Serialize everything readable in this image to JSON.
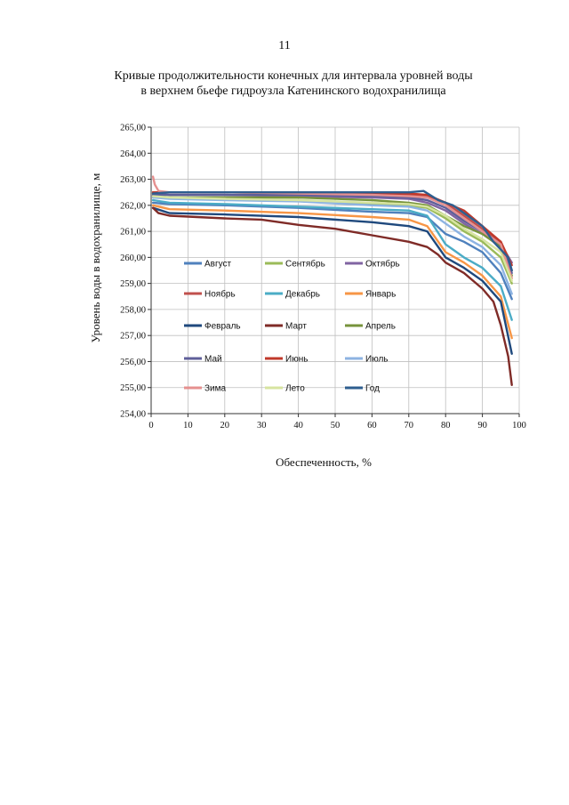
{
  "page_number": "11",
  "title_line1": "Кривые продолжительности конечных для интервала уровней воды",
  "title_line2": "в верхнем бьефе гидроузла Катенинского водохранилища",
  "chart_data": {
    "type": "line",
    "xlabel": "Обеспеченность, %",
    "ylabel": "Уровень воды в водохранилище, м",
    "xlim": [
      0,
      100
    ],
    "ylim": [
      254,
      265
    ],
    "x_ticks": [
      "0",
      "10",
      "20",
      "30",
      "40",
      "50",
      "60",
      "70",
      "80",
      "90",
      "100"
    ],
    "y_ticks": [
      "254,00",
      "255,00",
      "256,00",
      "257,00",
      "258,00",
      "259,00",
      "260,00",
      "261,00",
      "262,00",
      "263,00",
      "264,00",
      "265,00"
    ],
    "grid": true,
    "legend_position": "inside-bottom-left",
    "series": [
      {
        "name": "Август",
        "color": "#4f81bd",
        "x": [
          0.5,
          5,
          20,
          40,
          60,
          70,
          75,
          80,
          85,
          90,
          95,
          98
        ],
        "y": [
          262.1,
          262.05,
          262.0,
          261.9,
          261.75,
          261.7,
          261.55,
          260.9,
          260.6,
          260.2,
          259.4,
          258.4
        ]
      },
      {
        "name": "Сентябрь",
        "color": "#9bbb59",
        "x": [
          0.5,
          5,
          20,
          40,
          60,
          70,
          75,
          80,
          85,
          90,
          95,
          98
        ],
        "y": [
          262.4,
          262.3,
          262.25,
          262.2,
          262.05,
          262.0,
          261.9,
          261.5,
          261.0,
          260.6,
          260.0,
          259.0
        ]
      },
      {
        "name": "Октябрь",
        "color": "#8064a2",
        "x": [
          0.5,
          5,
          20,
          40,
          60,
          70,
          75,
          80,
          85,
          90,
          95,
          98
        ],
        "y": [
          262.45,
          262.4,
          262.4,
          262.35,
          262.3,
          262.25,
          262.1,
          261.8,
          261.3,
          260.9,
          260.5,
          259.8
        ]
      },
      {
        "name": "Ноябрь",
        "color": "#c0504d",
        "x": [
          0.5,
          5,
          20,
          40,
          60,
          70,
          75,
          80,
          85,
          90,
          95,
          98
        ],
        "y": [
          262.5,
          262.5,
          262.5,
          262.45,
          262.4,
          262.4,
          262.35,
          262.1,
          261.6,
          261.1,
          260.6,
          259.5
        ]
      },
      {
        "name": "Декабрь",
        "color": "#4bacc6",
        "x": [
          0.5,
          5,
          20,
          40,
          60,
          70,
          75,
          80,
          85,
          90,
          95,
          98
        ],
        "y": [
          262.2,
          262.1,
          262.05,
          261.95,
          261.85,
          261.8,
          261.6,
          260.5,
          260.0,
          259.6,
          258.9,
          257.6
        ]
      },
      {
        "name": "Январь",
        "color": "#f79646",
        "x": [
          0.5,
          5,
          20,
          40,
          60,
          70,
          75,
          80,
          85,
          90,
          95,
          98
        ],
        "y": [
          262.0,
          261.85,
          261.8,
          261.7,
          261.55,
          261.45,
          261.2,
          260.2,
          259.8,
          259.3,
          258.5,
          256.9
        ]
      },
      {
        "name": "Февраль",
        "color": "#1f497d",
        "x": [
          0.5,
          5,
          20,
          40,
          60,
          70,
          75,
          80,
          85,
          90,
          95,
          98
        ],
        "y": [
          261.9,
          261.7,
          261.65,
          261.55,
          261.35,
          261.2,
          261.0,
          260.0,
          259.6,
          259.1,
          258.3,
          256.3
        ]
      },
      {
        "name": "Март",
        "color": "#7f2b27",
        "x": [
          0.5,
          2,
          5,
          20,
          30,
          40,
          50,
          60,
          70,
          75,
          78,
          80,
          85,
          90,
          93,
          95,
          97,
          98
        ],
        "y": [
          261.9,
          261.7,
          261.6,
          261.5,
          261.45,
          261.25,
          261.1,
          260.85,
          260.6,
          260.4,
          260.1,
          259.8,
          259.4,
          258.8,
          258.3,
          257.4,
          256.2,
          255.1
        ]
      },
      {
        "name": "Апрель",
        "color": "#77933c",
        "x": [
          0.5,
          5,
          20,
          40,
          60,
          70,
          75,
          80,
          85,
          90,
          95,
          98
        ],
        "y": [
          262.3,
          262.3,
          262.3,
          262.3,
          262.2,
          262.1,
          262.0,
          261.6,
          261.2,
          260.9,
          260.4,
          259.3
        ]
      },
      {
        "name": "Май",
        "color": "#5f5f9a",
        "x": [
          0.5,
          5,
          20,
          40,
          60,
          70,
          75,
          80,
          85,
          90,
          95,
          98
        ],
        "y": [
          262.4,
          262.4,
          262.4,
          262.4,
          262.35,
          262.3,
          262.2,
          261.9,
          261.4,
          261.0,
          260.5,
          259.4
        ]
      },
      {
        "name": "Июнь",
        "color": "#c0392b",
        "x": [
          0.5,
          5,
          20,
          40,
          60,
          70,
          75,
          80,
          85,
          90,
          95,
          98
        ],
        "y": [
          262.5,
          262.5,
          262.5,
          262.5,
          262.45,
          262.45,
          262.4,
          262.1,
          261.8,
          261.2,
          260.6,
          259.7
        ]
      },
      {
        "name": "Июль",
        "color": "#8db3e2",
        "x": [
          0.5,
          5,
          20,
          40,
          60,
          70,
          75,
          80,
          85,
          90,
          95,
          98
        ],
        "y": [
          262.3,
          262.25,
          262.2,
          262.15,
          262.0,
          261.95,
          261.8,
          261.3,
          260.8,
          260.4,
          259.7,
          258.6
        ]
      },
      {
        "name": "Зима",
        "color": "#e6908f",
        "x": [
          0.5,
          1,
          2,
          5,
          20,
          40,
          60,
          70,
          75,
          80,
          85,
          90,
          95,
          98
        ],
        "y": [
          263.1,
          262.8,
          262.55,
          262.5,
          262.5,
          262.45,
          262.4,
          262.35,
          262.3,
          262.0,
          261.5,
          261.0,
          260.5,
          259.2
        ]
      },
      {
        "name": "Лето",
        "color": "#d7e4a0",
        "x": [
          0.5,
          5,
          20,
          40,
          60,
          70,
          75,
          80,
          85,
          90,
          95,
          98
        ],
        "y": [
          262.35,
          262.3,
          262.25,
          262.2,
          262.1,
          262.05,
          261.95,
          261.6,
          261.1,
          260.7,
          260.2,
          259.1
        ]
      },
      {
        "name": "Год",
        "color": "#2e5e8f",
        "x": [
          0.5,
          5,
          20,
          40,
          60,
          70,
          74,
          78,
          82,
          86,
          90,
          93,
          95,
          97,
          98
        ],
        "y": [
          262.45,
          262.5,
          262.5,
          262.5,
          262.5,
          262.5,
          262.55,
          262.2,
          262.0,
          261.6,
          261.2,
          260.6,
          260.3,
          260.0,
          259.5
        ]
      }
    ]
  }
}
